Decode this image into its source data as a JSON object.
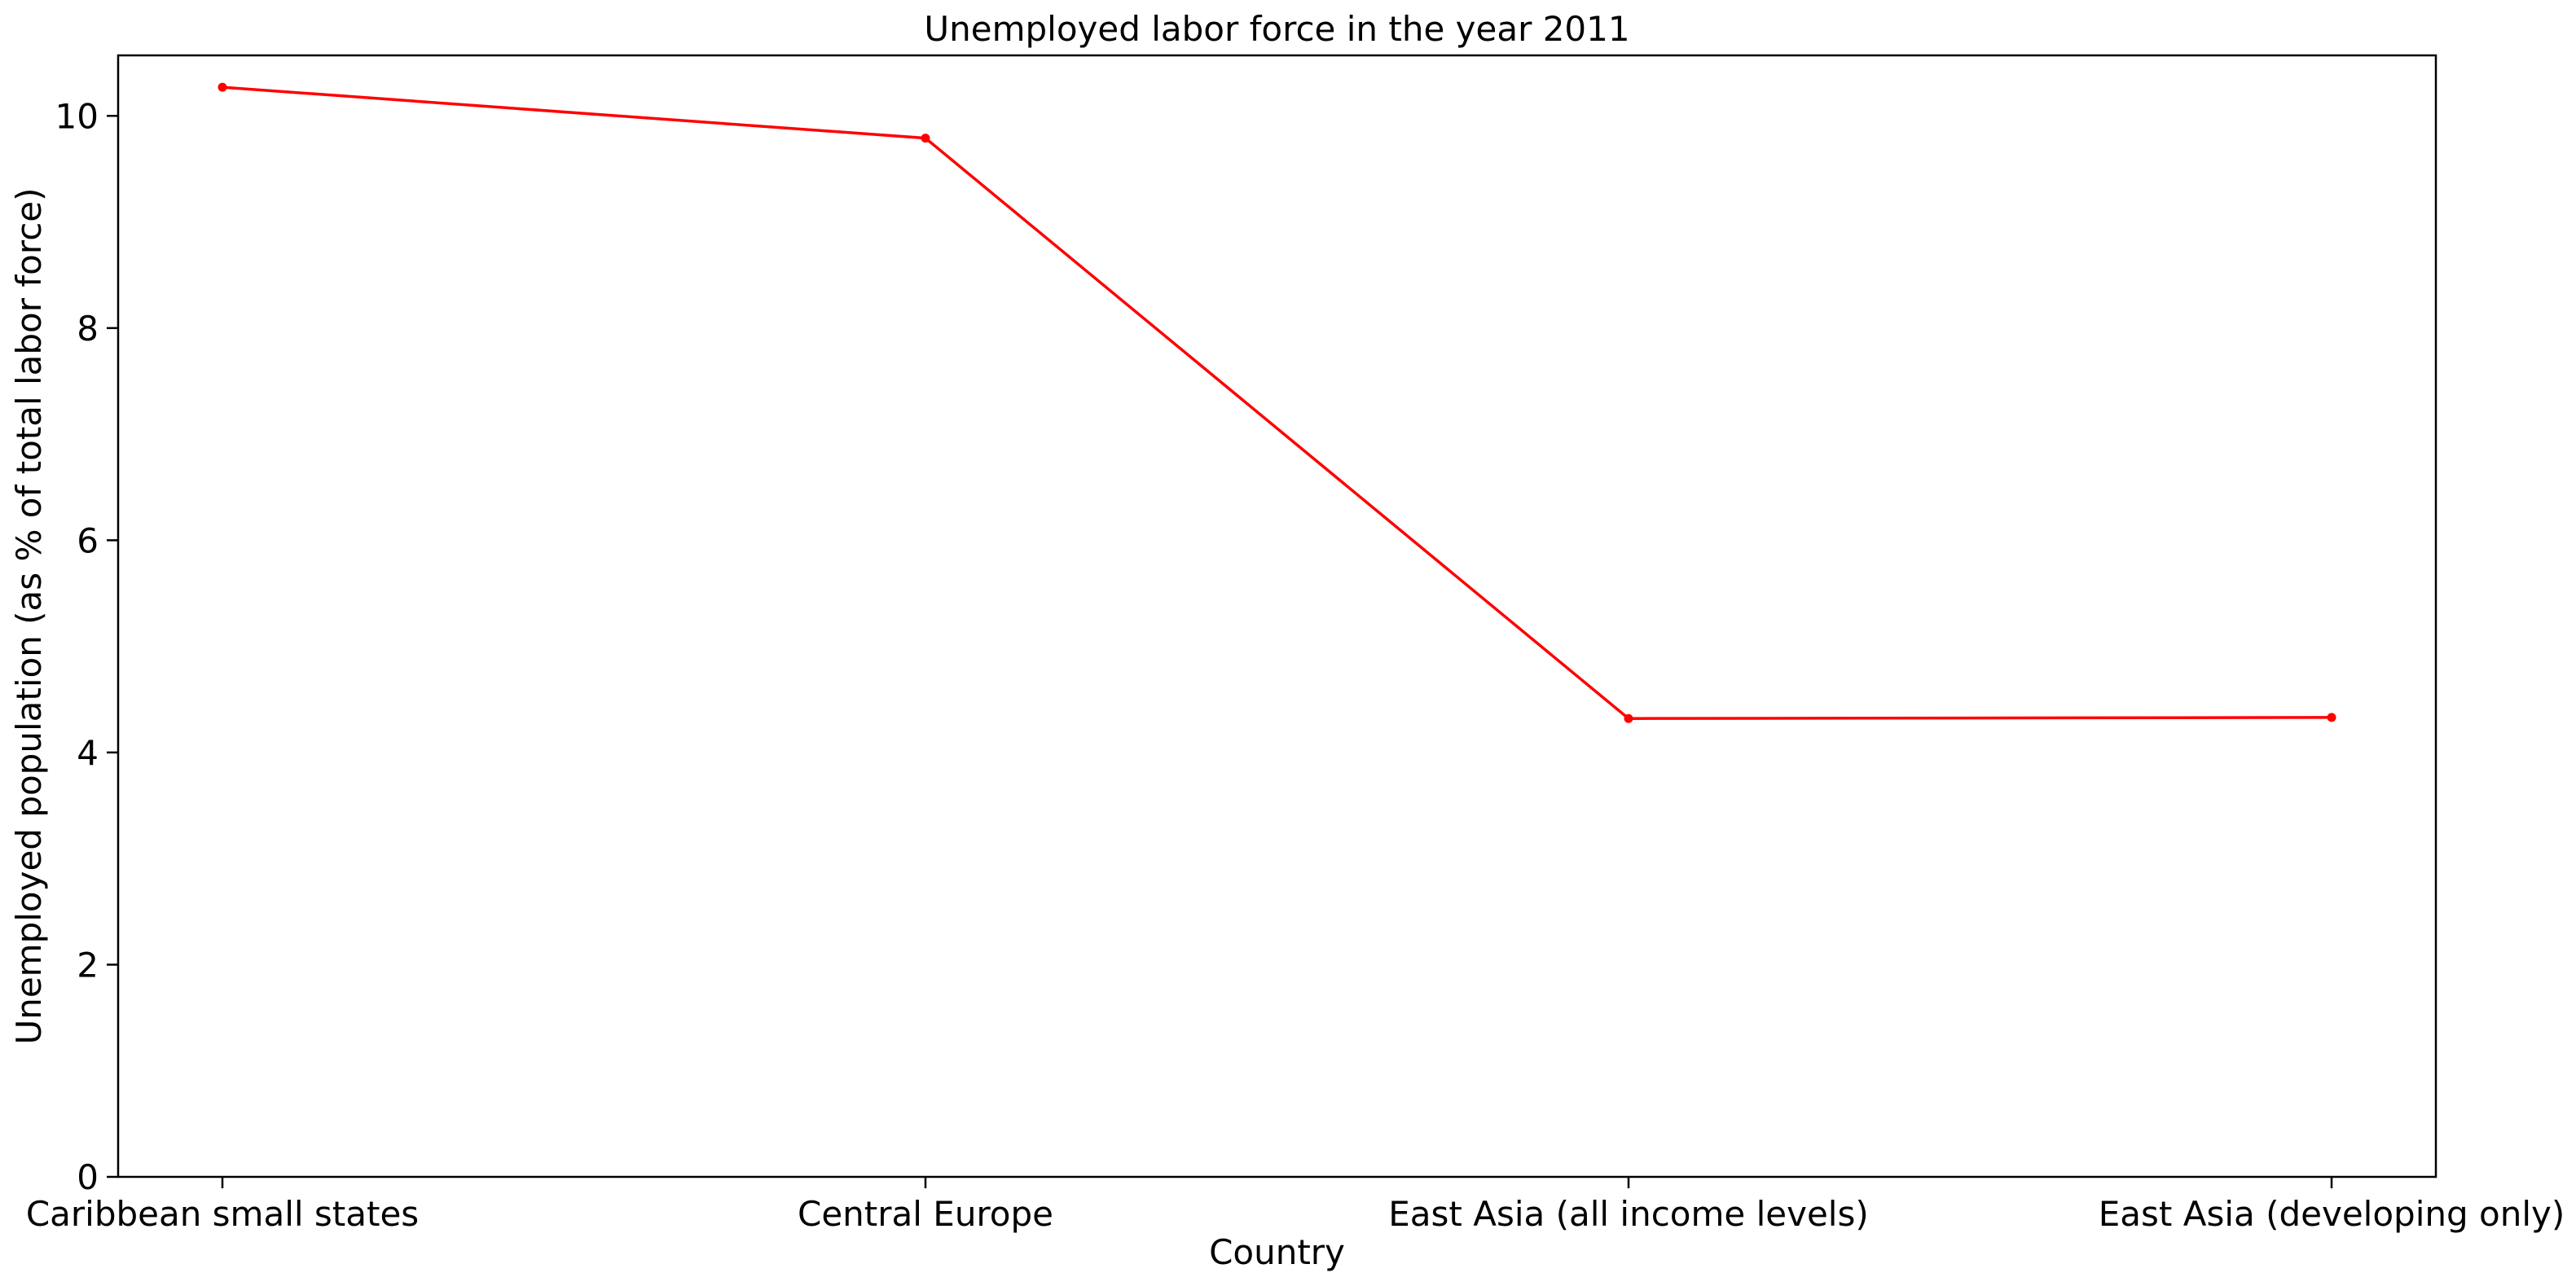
{
  "chart_data": {
    "type": "line",
    "title": "Unemployed labor force in the year 2011",
    "xlabel": "Country",
    "ylabel": "Unemployed population (as % of total labor force)",
    "categories": [
      "Caribbean small states",
      "Central Europe",
      "East Asia (all income levels)",
      "East Asia (developing only)"
    ],
    "series": [
      {
        "values": [
          10.27,
          9.79,
          4.32,
          4.33
        ]
      }
    ],
    "ylim": [
      0,
      10.57
    ],
    "yticks": [
      0,
      2,
      4,
      6,
      8,
      10
    ],
    "grid": false,
    "line_color": "#ff0000",
    "marker_color": "#ff0000"
  }
}
